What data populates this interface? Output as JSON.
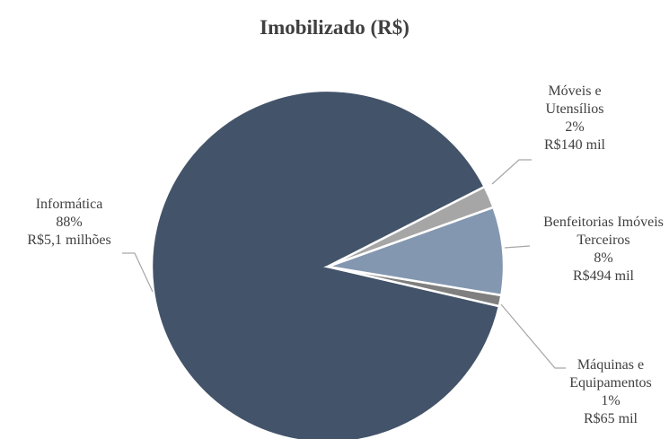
{
  "chart_data": {
    "type": "pie",
    "title": "Imobilizado (R$)",
    "categories": [
      "Móveis e Utensílios",
      "Benfeitorias Imóveis Terceiros",
      "Máquinas e Equipamentos",
      "Informática"
    ],
    "values": [
      2,
      8,
      1,
      88
    ],
    "value_labels": [
      "2%",
      "8%",
      "1%",
      "88%"
    ],
    "amount_labels": [
      "R$140 mil",
      "R$494 mil",
      "R$65 mil",
      "R$5,1 milhões"
    ],
    "colors": [
      "#a6a6a6",
      "#8497b0",
      "#7f7f7f",
      "#435369"
    ]
  }
}
